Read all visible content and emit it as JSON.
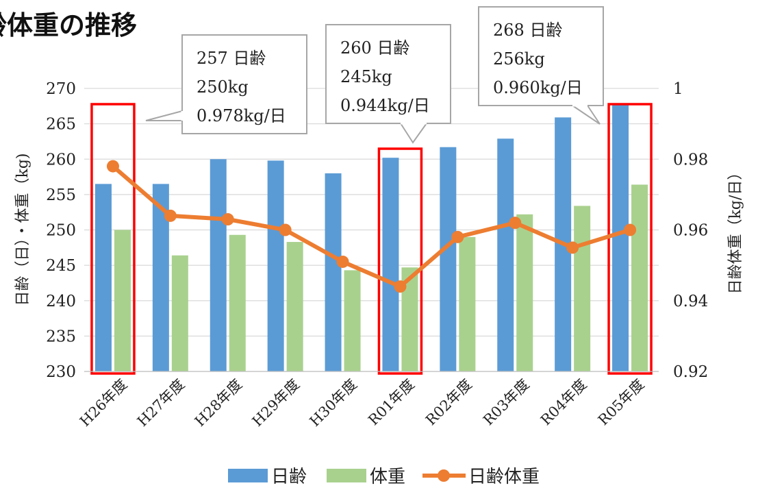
{
  "title_visible": "齢体重の推移",
  "chart_data": {
    "type": "bar",
    "categories": [
      "H26年度",
      "H27年度",
      "H28年度",
      "H29年度",
      "H30年度",
      "R01年度",
      "R02年度",
      "R03年度",
      "R04年度",
      "R05年度"
    ],
    "series": [
      {
        "name": "日齢",
        "type": "bar",
        "axis": "left",
        "color": "#5b9bd5",
        "values": [
          256.5,
          256.5,
          260,
          259.8,
          258,
          260.2,
          261.7,
          262.9,
          265.9,
          267.9
        ]
      },
      {
        "name": "体重",
        "type": "bar",
        "axis": "left",
        "color": "#a9d18e",
        "values": [
          250,
          246.4,
          249.3,
          248.3,
          244.3,
          244.7,
          249,
          252.2,
          253.4,
          256.4
        ]
      },
      {
        "name": "日齢体重",
        "type": "line",
        "axis": "right",
        "color": "#ed7d31",
        "values": [
          0.978,
          0.964,
          0.963,
          0.96,
          0.951,
          0.944,
          0.958,
          0.962,
          0.955,
          0.96
        ]
      }
    ],
    "ylabel": "日齢（日）・体重（kg)",
    "y2label": "日齢体重（kg/日）",
    "ylim": [
      230,
      270
    ],
    "yticks": [
      230,
      235,
      240,
      245,
      250,
      255,
      260,
      265,
      270
    ],
    "y2lim": [
      0.92,
      1.0
    ],
    "y2ticks": [
      "0.92",
      "0.94",
      "0.96",
      "0.98",
      "1"
    ],
    "grid": true,
    "legend": "bottom",
    "highlight_color": "#ff0000",
    "highlight_indices": [
      0,
      5,
      9
    ],
    "annotations": [
      {
        "index": 0,
        "lines": [
          "257 日齢",
          "250kg",
          "0.978kg/日"
        ]
      },
      {
        "index": 5,
        "lines": [
          "260 日齢",
          "245kg",
          "0.944kg/日"
        ]
      },
      {
        "index": 9,
        "lines": [
          "268 日齢",
          "256kg",
          "0.960kg/日"
        ]
      }
    ]
  }
}
